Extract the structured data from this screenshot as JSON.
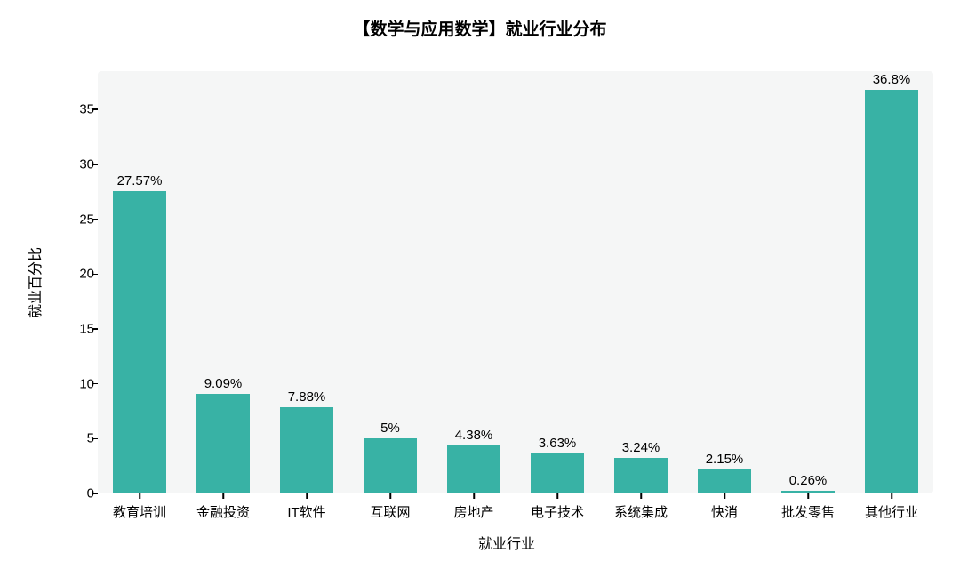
{
  "chart": {
    "type": "bar",
    "title": "【数学与应用数学】就业行业分布",
    "title_fontsize": 19,
    "title_color": "#000000",
    "xlabel": "就业行业",
    "ylabel": "就业百分比",
    "label_fontsize": 16,
    "tick_fontsize": 15,
    "value_label_fontsize": 15,
    "plot_background_color": "#f5f6f6",
    "page_background_color": "#ffffff",
    "axis_color": "#000000",
    "text_color": "#000000",
    "bar_color": "#38b2a5",
    "bar_width_ratio": 0.64,
    "ylim": [
      0,
      38.5
    ],
    "yticks": [
      0,
      5,
      10,
      15,
      20,
      25,
      30,
      35
    ],
    "categories": [
      "教育培训",
      "金融投资",
      "IT软件",
      "互联网",
      "房地产",
      "电子技术",
      "系统集成",
      "快消",
      "批发零售",
      "其他行业"
    ],
    "values": [
      27.57,
      9.09,
      7.88,
      5,
      4.38,
      3.63,
      3.24,
      2.15,
      0.26,
      36.8
    ],
    "value_labels": [
      "27.57%",
      "9.09%",
      "7.88%",
      "5%",
      "4.38%",
      "3.63%",
      "3.24%",
      "2.15%",
      "0.26%",
      "36.8%"
    ]
  }
}
